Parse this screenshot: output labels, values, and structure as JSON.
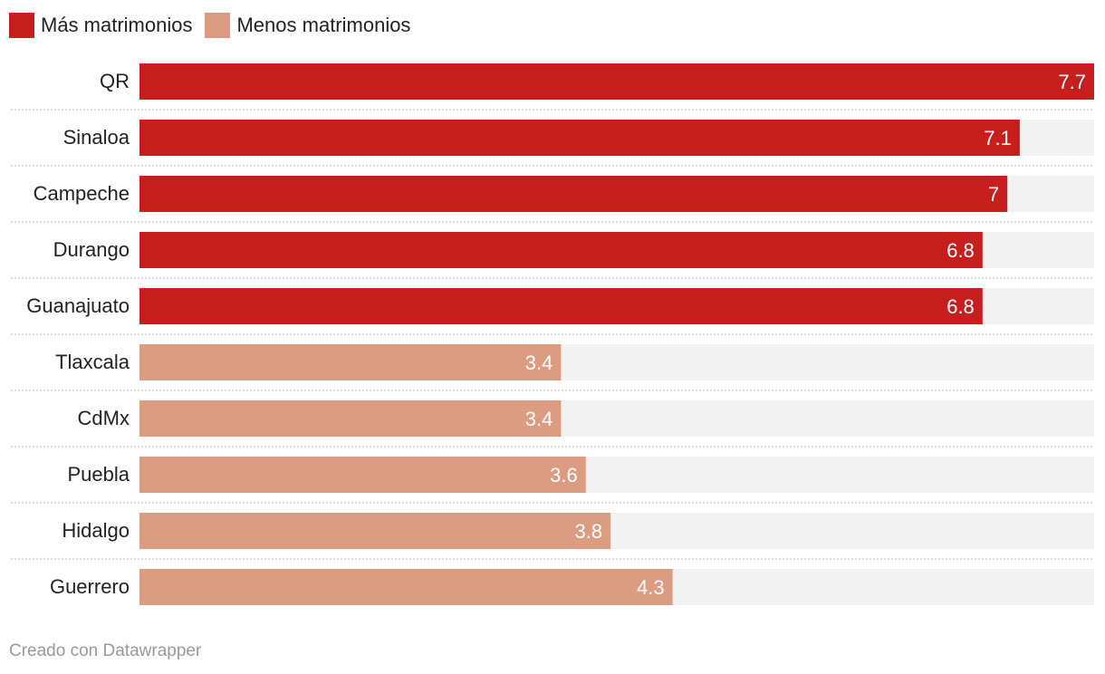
{
  "chart_data": {
    "type": "bar",
    "orientation": "horizontal",
    "categories": [
      "QR",
      "Sinaloa",
      "Campeche",
      "Durango",
      "Guanajuato",
      "Tlaxcala",
      "CdMx",
      "Puebla",
      "Hidalgo",
      "Guerrero"
    ],
    "values": [
      7.7,
      7.1,
      7,
      6.8,
      6.8,
      3.4,
      3.4,
      3.6,
      3.8,
      4.3
    ],
    "value_labels": [
      "7.7",
      "7.1",
      "7",
      "6.8",
      "6.8",
      "3.4",
      "3.4",
      "3.6",
      "3.8",
      "4.3"
    ],
    "groups": [
      0,
      0,
      0,
      0,
      0,
      1,
      1,
      1,
      1,
      1
    ],
    "xlim": [
      0,
      7.7
    ],
    "legend": [
      {
        "name": "Más matrimonios",
        "color": "#c71e1e"
      },
      {
        "name": "Menos matrimonios",
        "color": "#dc9c82"
      }
    ],
    "legend_placement": "top-left",
    "track_color": "#f2f2f2",
    "grid": false
  },
  "footer": "Creado con Datawrapper"
}
